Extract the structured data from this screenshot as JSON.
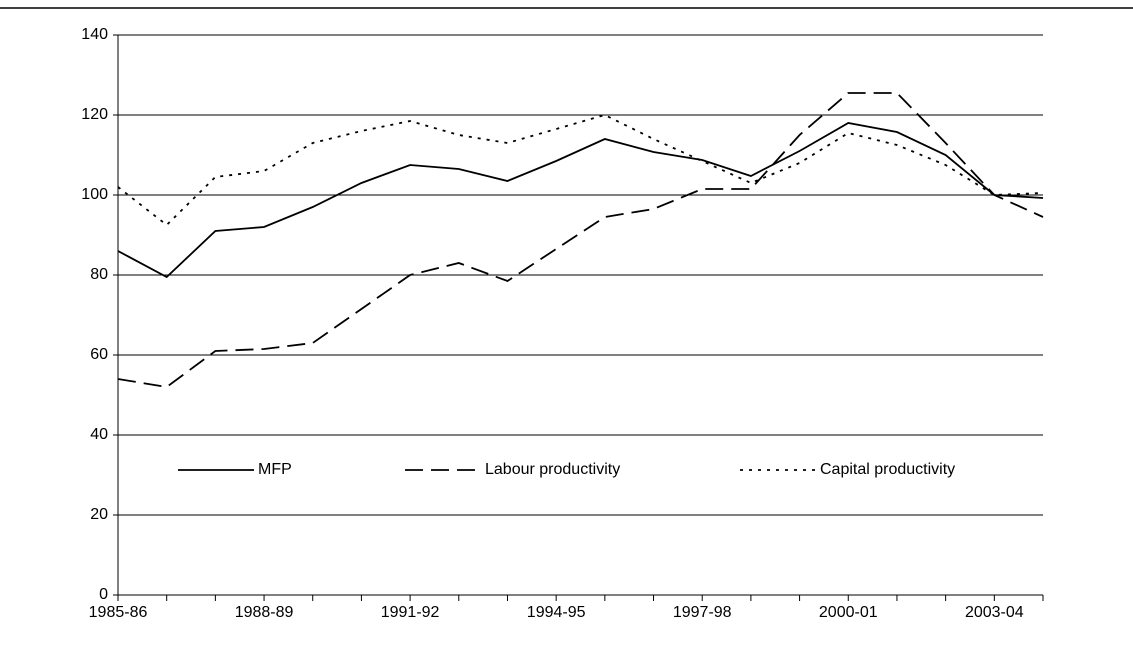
{
  "chart_data": {
    "type": "line",
    "categories": [
      "1985-86",
      null,
      null,
      "1988-89",
      null,
      null,
      "1991-92",
      null,
      null,
      "1994-95",
      null,
      null,
      "1997-98",
      null,
      null,
      "2000-01",
      null,
      null,
      "2003-04",
      null
    ],
    "series": [
      {
        "name": "MFP",
        "color": "#000000",
        "style": "solid",
        "values": [
          86,
          79.5,
          91,
          92,
          97,
          103,
          107.5,
          106.5,
          103.5,
          108.5,
          114,
          110.75,
          108.75,
          104.75,
          111,
          118,
          115.75,
          110,
          100,
          99.25
        ]
      },
      {
        "name": "Labour productivity",
        "color": "#000000",
        "style": "dashed",
        "values": [
          54,
          52,
          61,
          61.5,
          63,
          71.5,
          80,
          83,
          78.5,
          86.5,
          94.5,
          96.5,
          101.5,
          101.5,
          115,
          125.5,
          125.5,
          113,
          100,
          94.5
        ]
      },
      {
        "name": "Capital productivity",
        "color": "#000000",
        "style": "dotted",
        "values": [
          102,
          92.5,
          104.5,
          106,
          113,
          116,
          118.5,
          115,
          113,
          116.5,
          120,
          114,
          108.5,
          103,
          108,
          115.5,
          112.5,
          107.5,
          100,
          100.5
        ]
      }
    ],
    "ylim": [
      0,
      140
    ],
    "yticks": [
      0,
      20,
      40,
      60,
      80,
      100,
      120,
      140
    ],
    "grid": true,
    "legend": "inside"
  }
}
